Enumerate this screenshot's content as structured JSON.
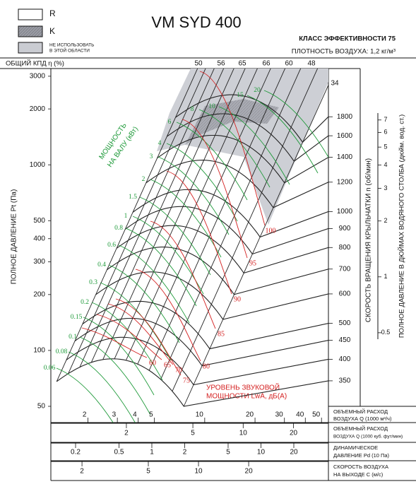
{
  "legend": {
    "r": "R",
    "k": "K",
    "restricted": [
      "НЕ ИСПОЛЬЗОВАТЬ",
      "В ЭТОЙ ОБЛАСТИ"
    ]
  },
  "chart_data": {
    "type": "fan-chart",
    "title": "VM SYD 400",
    "efficiency_class": "КЛАСС ЭФФЕКТИВНОСТИ 75",
    "density": "ПЛОТНОСТЬ ВОЗДУХА: 1,2 кг/м³",
    "efficiency_label": "ОБЩИЙ КПД η (%)",
    "efficiency_values": [
      50,
      56,
      65,
      66,
      60,
      48,
      34
    ],
    "y_label": "ПОЛНОЕ ДАВЛЕНИЕ Pt (Па)",
    "log_y": true,
    "ylim": [
      50,
      3300
    ],
    "yticks": [
      50,
      100,
      200,
      300,
      400,
      500,
      1000,
      2000,
      3000
    ],
    "log_x": true,
    "xlim": [
      1.2,
      55
    ],
    "xticks": [
      2,
      3,
      4,
      5,
      10,
      20,
      30,
      40,
      50
    ],
    "x_label": [
      "ОБЪЕМНЫЙ РАСХОД",
      "ВОЗДУХА Q (1000 м³/ч)"
    ],
    "cfm_ticks": [
      2,
      5,
      10,
      20
    ],
    "cfm_label": [
      "ОБЪЕМНЫЙ РАСХОД",
      "ВОЗДУХА Q (1000 куб. фут/мин)"
    ],
    "pd_ticks": [
      0.2,
      0.5,
      1,
      2,
      5,
      10,
      20
    ],
    "pd_label": [
      "ДИНАМИЧЕСКОЕ",
      "ДАВЛЕНИЕ Pd (10 Па)"
    ],
    "c_ticks": [
      2,
      5,
      10,
      20
    ],
    "c_label": [
      "СКОРОСТЬ ВОЗДУХА",
      "НА ВЫХОДЕ С (м/с)"
    ],
    "rpm_label": "СКОРОСТЬ ВРАЩЕНИЯ КРЫЛЬЧАТКИ n (об/мин)",
    "rpm_ticks": [
      1800,
      1600,
      1400,
      1200,
      1000,
      900,
      800,
      700,
      600,
      500,
      450,
      400,
      350
    ],
    "inch_label": "ПОЛНОЕ ДАВЛЕНИЕ В ДЮЙМАХ ВОДЯНОГО СТОЛБА (дюйм. вод. ст.)",
    "inch_ticks": [
      7,
      6,
      5,
      4,
      3,
      2,
      1,
      0.5
    ],
    "power_label": [
      "МОЩНОСТЬ",
      "НА ВАЛУ (кВт)"
    ],
    "power_values": [
      0.06,
      0.08,
      0.1,
      0.15,
      0.2,
      0.3,
      0.4,
      0.6,
      0.8,
      1,
      1.5,
      2,
      3,
      4,
      6,
      8,
      10,
      15,
      20
    ],
    "sound_label": [
      "УРОВЕНЬ ЗВУКОВОЙ",
      "МОЩНОСТИ LwA, дБ(А)"
    ],
    "sound_values": [
      60,
      65,
      70,
      75,
      80,
      85,
      90,
      95,
      100
    ]
  }
}
